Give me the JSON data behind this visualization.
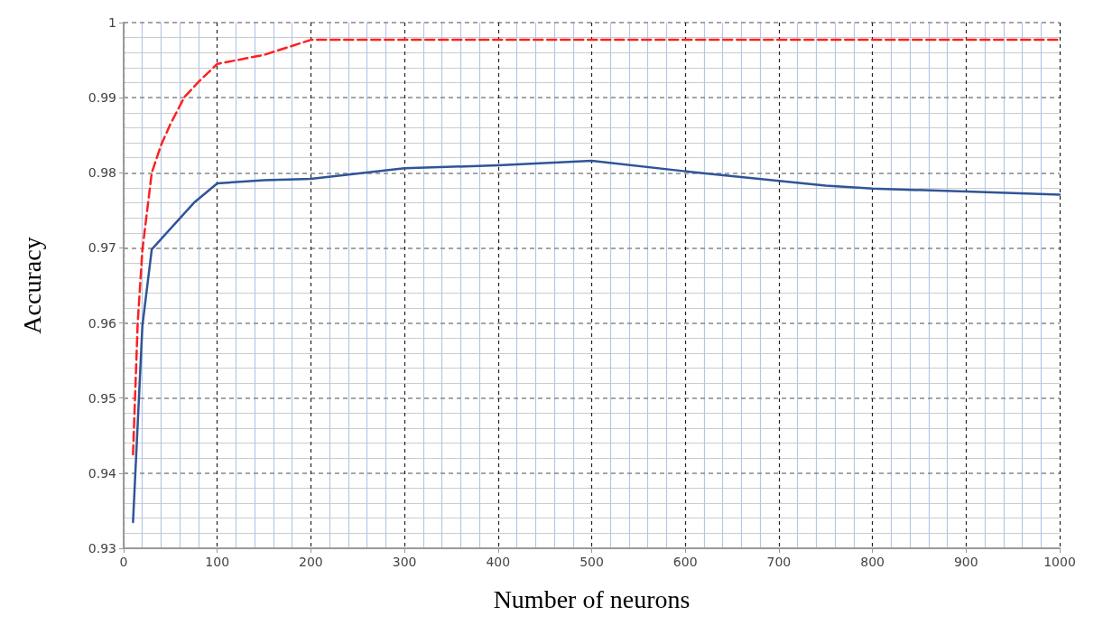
{
  "chart_data": {
    "type": "line",
    "xlabel": "Number of neurons",
    "ylabel": "Accuracy",
    "xlim": [
      0,
      1000
    ],
    "xticks": [
      0,
      {
        "value": 20,
        "label": null
      },
      {
        "value": 40,
        "label": null
      },
      {
        "value": 60,
        "label": null
      },
      {
        "value": 80,
        "label": null
      },
      100,
      {
        "value": 120,
        "label": null
      },
      {
        "value": 140,
        "label": null
      },
      {
        "value": 160,
        "label": null
      },
      {
        "value": 180,
        "label": null
      },
      200,
      {
        "value": 220,
        "label": null
      },
      {
        "value": 240,
        "label": null
      },
      {
        "value": 260,
        "label": null
      },
      {
        "value": 280,
        "label": null
      },
      300,
      {
        "value": 320,
        "label": null
      },
      {
        "value": 340,
        "label": null
      },
      {
        "value": 360,
        "label": null
      },
      {
        "value": 380,
        "label": null
      },
      400,
      {
        "value": 420,
        "label": null
      },
      {
        "value": 440,
        "label": null
      },
      {
        "value": 460,
        "label": null
      },
      {
        "value": 480,
        "label": null
      },
      500,
      {
        "value": 520,
        "label": null
      },
      {
        "value": 540,
        "label": null
      },
      {
        "value": 560,
        "label": null
      },
      {
        "value": 580,
        "label": null
      },
      600,
      {
        "value": 620,
        "label": null
      },
      {
        "value": 640,
        "label": null
      },
      {
        "value": 660,
        "label": null
      },
      {
        "value": 680,
        "label": null
      },
      700,
      {
        "value": 720,
        "label": null
      },
      {
        "value": 740,
        "label": null
      },
      {
        "value": 760,
        "label": null
      },
      {
        "value": 780,
        "label": null
      },
      800,
      {
        "value": 820,
        "label": null
      },
      {
        "value": 840,
        "label": null
      },
      {
        "value": 860,
        "label": null
      },
      {
        "value": 880,
        "label": null
      },
      900,
      {
        "value": 920,
        "label": null
      },
      {
        "value": 940,
        "label": null
      },
      {
        "value": 960,
        "label": null
      },
      {
        "value": 980,
        "label": null
      },
      1000
    ],
    "ylim": [
      0.93,
      1
    ],
    "yticks": [
      0.93,
      {
        "value": 0.932,
        "label": null
      },
      {
        "value": 0.934,
        "label": null
      },
      {
        "value": 0.936,
        "label": null
      },
      {
        "value": 0.938,
        "label": null
      },
      0.94,
      {
        "value": 0.942,
        "label": null
      },
      {
        "value": 0.944,
        "label": null
      },
      {
        "value": 0.946,
        "label": null
      },
      {
        "value": 0.948,
        "label": null
      },
      0.95,
      {
        "value": 0.952,
        "label": null
      },
      {
        "value": 0.954,
        "label": null
      },
      {
        "value": 0.956,
        "label": null
      },
      {
        "value": 0.958,
        "label": null
      },
      0.96,
      {
        "value": 0.962,
        "label": null
      },
      {
        "value": 0.964,
        "label": null
      },
      {
        "value": 0.966,
        "label": null
      },
      {
        "value": 0.968,
        "label": null
      },
      0.97,
      {
        "value": 0.972,
        "label": null
      },
      {
        "value": 0.974,
        "label": null
      },
      {
        "value": 0.976,
        "label": null
      },
      {
        "value": 0.978,
        "label": null
      },
      0.98,
      {
        "value": 0.982,
        "label": null
      },
      {
        "value": 0.984,
        "label": null
      },
      {
        "value": 0.986,
        "label": null
      },
      {
        "value": 0.988,
        "label": null
      },
      0.99,
      {
        "value": 0.992,
        "label": null
      },
      {
        "value": 0.994,
        "label": null
      },
      {
        "value": 0.996,
        "label": null
      },
      {
        "value": 0.998,
        "label": null
      },
      1
    ],
    "grid": true,
    "marker": "none",
    "series": [
      {
        "color": "#ff2020",
        "line_style": "dashed",
        "x": [
          10,
          15,
          20,
          30,
          40,
          50,
          65,
          80,
          100,
          150,
          200,
          300,
          400,
          500,
          600,
          700,
          800,
          900,
          1000
        ],
        "values": [
          0.9425,
          0.96,
          0.9697,
          0.98,
          0.9837,
          0.9865,
          0.9901,
          0.9921,
          0.9945,
          0.9957,
          0.9977,
          0.9977,
          0.9977,
          0.9977,
          0.9977,
          0.9977,
          0.9977,
          0.9977,
          0.9977
        ]
      },
      {
        "color": "#2f5597",
        "line_style": "solid",
        "x": [
          10,
          20,
          30,
          75,
          100,
          150,
          200,
          300,
          400,
          500,
          600,
          750,
          800,
          900,
          1000
        ],
        "values": [
          0.9335,
          0.9596,
          0.9698,
          0.976,
          0.9786,
          0.979,
          0.9792,
          0.9806,
          0.981,
          0.9816,
          0.9802,
          0.9783,
          0.9779,
          0.9775,
          0.9771
        ]
      }
    ]
  }
}
